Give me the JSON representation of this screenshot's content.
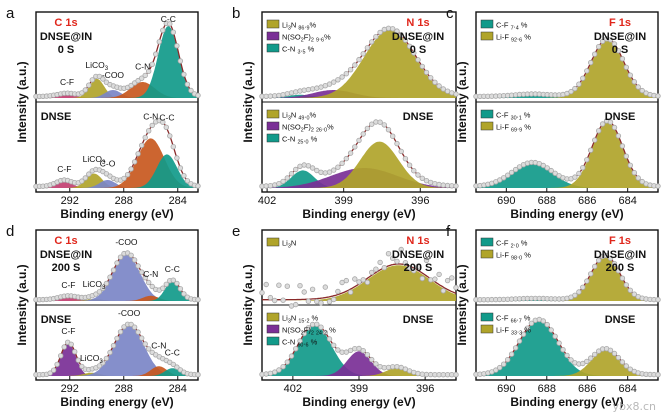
{
  "figure": {
    "xlabel": "Binding energy (eV)",
    "ylabel": "Intensity (a.u.)",
    "watermark": "ybx8.cn"
  },
  "colors": {
    "teal": "#119a8a",
    "olive": "#b0a42a",
    "orange": "#c8581e",
    "purple": "#7a2f96",
    "blue": "#7b86c7",
    "pink": "#c23f71",
    "label_red": "#e0261b",
    "raw": "#a8a8a8",
    "fit": "#8a2a2a"
  },
  "chart_data": [
    {
      "id": "a",
      "type": "line",
      "element": "C 1s",
      "xlim": [
        294.5,
        282.5
      ],
      "xticks": [
        292,
        288,
        284
      ],
      "top": {
        "sample": "DNSE@IN",
        "time": "0 S",
        "peaks": [
          {
            "name": "C-F",
            "center": 292.2,
            "height": 0.04,
            "sigma": 0.7,
            "color": "#c23f71",
            "label": "C-F"
          },
          {
            "name": "LiCO3",
            "center": 290.0,
            "height": 0.24,
            "sigma": 0.55,
            "color": "#b0a42a",
            "label": "LiCO3"
          },
          {
            "name": "-COO",
            "center": 288.8,
            "height": 0.1,
            "sigma": 0.6,
            "color": "#7b86c7",
            "label": "-COO"
          },
          {
            "name": "C-N",
            "center": 286.6,
            "height": 0.2,
            "sigma": 0.9,
            "color": "#c8581e",
            "label": "C-N"
          },
          {
            "name": "C-C",
            "center": 284.7,
            "height": 0.9,
            "sigma": 0.75,
            "color": "#119a8a",
            "label": "C-C"
          }
        ]
      },
      "bottom": {
        "sample": "DNSE",
        "peaks": [
          {
            "name": "C-F",
            "center": 292.4,
            "height": 0.08,
            "sigma": 0.6,
            "color": "#c23f71",
            "label": "C-F"
          },
          {
            "name": "LiCO3",
            "center": 290.2,
            "height": 0.18,
            "sigma": 0.6,
            "color": "#b0a42a",
            "label": "LiCO3"
          },
          {
            "name": "C-O",
            "center": 289.2,
            "height": 0.1,
            "sigma": 0.6,
            "color": "#7b86c7",
            "label": "C-O"
          },
          {
            "name": "C-N",
            "center": 286.0,
            "height": 0.62,
            "sigma": 1.0,
            "color": "#c8581e",
            "label": "C-N"
          },
          {
            "name": "C-C",
            "center": 284.8,
            "height": 0.42,
            "sigma": 0.75,
            "color": "#119a8a",
            "label": "C-C"
          }
        ]
      }
    },
    {
      "id": "b",
      "type": "line",
      "element": "N 1s",
      "xlim": [
        402.2,
        394.6
      ],
      "xticks": [
        402,
        399,
        396
      ],
      "top": {
        "sample": "DNSE@IN",
        "time": "0 S",
        "legend": [
          {
            "label": "Li3N",
            "pct": "86.9%",
            "color": "#b0a42a"
          },
          {
            "label": "N(SO2F)2",
            "pct": "9.6%",
            "color": "#7a2f96"
          },
          {
            "label": "C-N",
            "pct": "3.5 %",
            "color": "#119a8a"
          }
        ],
        "peaks": [
          {
            "name": "C-N",
            "center": 400.7,
            "height": 0.04,
            "sigma": 0.5,
            "color": "#119a8a"
          },
          {
            "name": "N(SO2F)2",
            "center": 399.4,
            "height": 0.1,
            "sigma": 0.8,
            "color": "#7a2f96"
          },
          {
            "name": "Li3N",
            "center": 397.2,
            "height": 0.85,
            "sigma": 1.0,
            "color": "#b0a42a"
          }
        ]
      },
      "bottom": {
        "sample": "DNSE",
        "legend": [
          {
            "label": "Li3N",
            "pct": "49.0%",
            "color": "#b0a42a"
          },
          {
            "label": "N(SO2F)2",
            "pct": "26.0%",
            "color": "#7a2f96"
          },
          {
            "label": "C-N",
            "pct": "25.0 %",
            "color": "#119a8a"
          }
        ],
        "peaks": [
          {
            "name": "C-N",
            "center": 400.6,
            "height": 0.22,
            "sigma": 0.45,
            "color": "#119a8a"
          },
          {
            "name": "N(SO2F)2",
            "center": 398.2,
            "height": 0.25,
            "sigma": 1.3,
            "color": "#7a2f96"
          },
          {
            "name": "Li3N",
            "center": 397.6,
            "height": 0.58,
            "sigma": 0.75,
            "color": "#b0a42a"
          }
        ]
      }
    },
    {
      "id": "c",
      "type": "line",
      "element": "F 1s",
      "xlim": [
        691.5,
        682.5
      ],
      "xticks": [
        690,
        688,
        686,
        684
      ],
      "top": {
        "sample": "DNSE@IN",
        "time": "0 S",
        "legend": [
          {
            "label": "C-F",
            "pct": "7.4 %",
            "color": "#119a8a"
          },
          {
            "label": "Li-F",
            "pct": "92.6 %",
            "color": "#b0a42a"
          }
        ],
        "peaks": [
          {
            "name": "C-F",
            "center": 688.7,
            "height": 0.03,
            "sigma": 0.9,
            "color": "#119a8a"
          },
          {
            "name": "Li-F",
            "center": 685.0,
            "height": 0.72,
            "sigma": 0.8,
            "color": "#b0a42a"
          }
        ]
      },
      "bottom": {
        "sample": "DNSE",
        "legend": [
          {
            "label": "C-F",
            "pct": "30.1 %",
            "color": "#119a8a"
          },
          {
            "label": "Li-F",
            "pct": "69.9 %",
            "color": "#b0a42a"
          }
        ],
        "peaks": [
          {
            "name": "C-F",
            "center": 688.7,
            "height": 0.3,
            "sigma": 1.0,
            "color": "#119a8a"
          },
          {
            "name": "Li-F",
            "center": 685.0,
            "height": 0.82,
            "sigma": 0.75,
            "color": "#b0a42a"
          }
        ]
      }
    },
    {
      "id": "d",
      "type": "line",
      "element": "C 1s",
      "xlim": [
        294.5,
        282.5
      ],
      "xticks": [
        292,
        288,
        284
      ],
      "top": {
        "sample": "DNSE@IN",
        "time": "200 S",
        "peaks": [
          {
            "name": "C-F",
            "center": 292.1,
            "height": 0.06,
            "sigma": 0.7,
            "color": "#c23f71",
            "label": "C-F"
          },
          {
            "name": "LiCO3",
            "center": 290.2,
            "height": 0.03,
            "sigma": 0.6,
            "color": "#b0a42a",
            "label": "LiCO3"
          },
          {
            "name": "-COO",
            "center": 287.8,
            "height": 0.72,
            "sigma": 1.0,
            "color": "#7b86c7",
            "label": "-COO"
          },
          {
            "name": "C-N",
            "center": 286.0,
            "height": 0.08,
            "sigma": 0.6,
            "color": "#c8581e",
            "label": "C-N"
          },
          {
            "name": "C-C",
            "center": 284.4,
            "height": 0.3,
            "sigma": 0.55,
            "color": "#119a8a",
            "label": "C-C"
          }
        ]
      },
      "bottom": {
        "sample": "DNSE",
        "peaks": [
          {
            "name": "C-F",
            "center": 292.1,
            "height": 0.5,
            "sigma": 0.55,
            "color": "#7a2f96",
            "label": "C-F"
          },
          {
            "name": "LiCO3",
            "center": 290.4,
            "height": 0.05,
            "sigma": 0.6,
            "color": "#b0a42a",
            "label": "LiCO3"
          },
          {
            "name": "-COO",
            "center": 287.6,
            "height": 0.78,
            "sigma": 1.1,
            "color": "#7b86c7",
            "label": "-COO"
          },
          {
            "name": "C-N",
            "center": 285.4,
            "height": 0.15,
            "sigma": 0.6,
            "color": "#c8581e",
            "label": "C-N"
          },
          {
            "name": "C-C",
            "center": 284.4,
            "height": 0.12,
            "sigma": 0.55,
            "color": "#119a8a",
            "label": "C-C"
          }
        ]
      }
    },
    {
      "id": "e",
      "type": "line",
      "element": "N 1s",
      "xlim": [
        403.4,
        394.6
      ],
      "xticks": [
        402,
        399,
        396
      ],
      "top": {
        "sample": "DNSE@IN",
        "time": "200 S",
        "legend": [
          {
            "label": "Li3N",
            "pct": "",
            "color": "#b0a42a"
          }
        ],
        "noisy": true,
        "peaks": [
          {
            "name": "Li3N",
            "center": 397.2,
            "height": 0.55,
            "sigma": 1.4,
            "color": "#b0a42a"
          }
        ]
      },
      "bottom": {
        "sample": "DNSE",
        "legend": [
          {
            "label": "Li3N",
            "pct": "15.2 %",
            "color": "#b0a42a"
          },
          {
            "label": "N(SO2F)2",
            "pct": "24.2 %",
            "color": "#7a2f96"
          },
          {
            "label": "C-N",
            "pct": "60.6 %",
            "color": "#119a8a"
          }
        ],
        "peaks": [
          {
            "name": "C-N",
            "center": 401.0,
            "height": 0.78,
            "sigma": 0.75,
            "color": "#119a8a"
          },
          {
            "name": "N(SO2F)2",
            "center": 399.0,
            "height": 0.38,
            "sigma": 0.55,
            "color": "#7a2f96"
          },
          {
            "name": "Li3N",
            "center": 397.3,
            "height": 0.12,
            "sigma": 0.5,
            "color": "#b0a42a"
          }
        ]
      }
    },
    {
      "id": "f",
      "type": "line",
      "element": "F 1s",
      "xlim": [
        691.5,
        682.5
      ],
      "xticks": [
        690,
        688,
        686,
        684
      ],
      "top": {
        "sample": "DNSE@IN",
        "time": "200 S",
        "legend": [
          {
            "label": "C-F",
            "pct": "2.0 %",
            "color": "#119a8a"
          },
          {
            "label": "Li-F",
            "pct": "98.0 %",
            "color": "#b0a42a"
          }
        ],
        "peaks": [
          {
            "name": "C-F",
            "center": 688.6,
            "height": 0.02,
            "sigma": 0.9,
            "color": "#119a8a"
          },
          {
            "name": "Li-F",
            "center": 685.1,
            "height": 0.68,
            "sigma": 0.7,
            "color": "#b0a42a"
          }
        ]
      },
      "bottom": {
        "sample": "DNSE",
        "legend": [
          {
            "label": "C-F",
            "pct": "66.7 %",
            "color": "#119a8a"
          },
          {
            "label": "Li-F",
            "pct": "33.3 %",
            "color": "#b0a42a"
          }
        ],
        "peaks": [
          {
            "name": "C-F",
            "center": 688.4,
            "height": 0.85,
            "sigma": 0.95,
            "color": "#119a8a"
          },
          {
            "name": "Li-F",
            "center": 685.1,
            "height": 0.4,
            "sigma": 0.7,
            "color": "#b0a42a"
          }
        ]
      }
    }
  ]
}
